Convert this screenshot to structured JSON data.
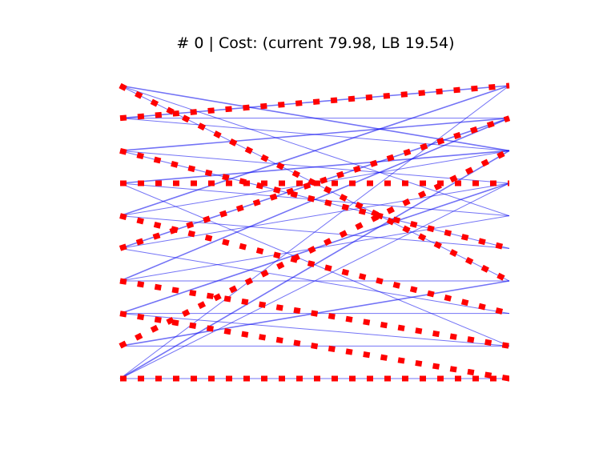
{
  "chart_data": {
    "type": "bipartite-matching",
    "title": "# 0 | Cost: (current 79.98, LB 19.54)",
    "axes_visible": false,
    "nodes_per_side": 10,
    "node_index_order": "top-to-bottom",
    "candidate_edges": [
      [
        0,
        2
      ],
      [
        0,
        4
      ],
      [
        0,
        6
      ],
      [
        1,
        0
      ],
      [
        1,
        1
      ],
      [
        1,
        2
      ],
      [
        2,
        1
      ],
      [
        2,
        3
      ],
      [
        2,
        5
      ],
      [
        3,
        2
      ],
      [
        3,
        4
      ],
      [
        3,
        8
      ],
      [
        4,
        0
      ],
      [
        4,
        2
      ],
      [
        4,
        5
      ],
      [
        5,
        1
      ],
      [
        5,
        3
      ],
      [
        5,
        7
      ],
      [
        6,
        1
      ],
      [
        6,
        4
      ],
      [
        6,
        6
      ],
      [
        7,
        3
      ],
      [
        7,
        7
      ],
      [
        7,
        8
      ],
      [
        8,
        6
      ],
      [
        8,
        8
      ],
      [
        9,
        0
      ],
      [
        9,
        2
      ],
      [
        9,
        3
      ],
      [
        9,
        9
      ]
    ],
    "matching": [
      [
        0,
        6
      ],
      [
        1,
        0
      ],
      [
        2,
        5
      ],
      [
        3,
        3
      ],
      [
        4,
        7
      ],
      [
        5,
        1
      ],
      [
        6,
        8
      ],
      [
        7,
        9
      ],
      [
        8,
        2
      ],
      [
        9,
        9
      ]
    ],
    "colors": {
      "candidate_edges": "#0000ee",
      "matching": "#ff0000"
    }
  }
}
